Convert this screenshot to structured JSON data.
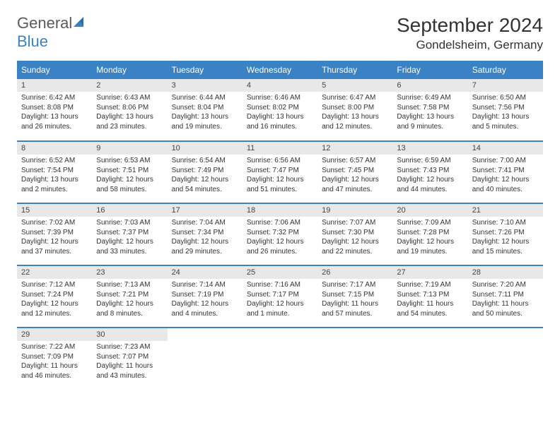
{
  "logo": {
    "text1": "General",
    "text2": "Blue"
  },
  "title": "September 2024",
  "location": "Gondelsheim, Germany",
  "colors": {
    "header_bg": "#3b82c4",
    "header_text": "#ffffff",
    "daynum_bg": "#e8e8e8",
    "daynum_text": "#444444",
    "body_text": "#333333",
    "row_border": "#3b82c4",
    "page_bg": "#ffffff",
    "logo_gray": "#5a5a5a",
    "logo_blue": "#3b82c4"
  },
  "typography": {
    "title_fontsize": 28,
    "location_fontsize": 17,
    "dayheader_fontsize": 12,
    "daynum_fontsize": 11,
    "body_fontsize": 10,
    "logo_fontsize": 22
  },
  "day_headers": [
    "Sunday",
    "Monday",
    "Tuesday",
    "Wednesday",
    "Thursday",
    "Friday",
    "Saturday"
  ],
  "weeks": [
    [
      {
        "num": "1",
        "sunrise": "Sunrise: 6:42 AM",
        "sunset": "Sunset: 8:08 PM",
        "daylight": "Daylight: 13 hours and 26 minutes."
      },
      {
        "num": "2",
        "sunrise": "Sunrise: 6:43 AM",
        "sunset": "Sunset: 8:06 PM",
        "daylight": "Daylight: 13 hours and 23 minutes."
      },
      {
        "num": "3",
        "sunrise": "Sunrise: 6:44 AM",
        "sunset": "Sunset: 8:04 PM",
        "daylight": "Daylight: 13 hours and 19 minutes."
      },
      {
        "num": "4",
        "sunrise": "Sunrise: 6:46 AM",
        "sunset": "Sunset: 8:02 PM",
        "daylight": "Daylight: 13 hours and 16 minutes."
      },
      {
        "num": "5",
        "sunrise": "Sunrise: 6:47 AM",
        "sunset": "Sunset: 8:00 PM",
        "daylight": "Daylight: 13 hours and 12 minutes."
      },
      {
        "num": "6",
        "sunrise": "Sunrise: 6:49 AM",
        "sunset": "Sunset: 7:58 PM",
        "daylight": "Daylight: 13 hours and 9 minutes."
      },
      {
        "num": "7",
        "sunrise": "Sunrise: 6:50 AM",
        "sunset": "Sunset: 7:56 PM",
        "daylight": "Daylight: 13 hours and 5 minutes."
      }
    ],
    [
      {
        "num": "8",
        "sunrise": "Sunrise: 6:52 AM",
        "sunset": "Sunset: 7:54 PM",
        "daylight": "Daylight: 13 hours and 2 minutes."
      },
      {
        "num": "9",
        "sunrise": "Sunrise: 6:53 AM",
        "sunset": "Sunset: 7:51 PM",
        "daylight": "Daylight: 12 hours and 58 minutes."
      },
      {
        "num": "10",
        "sunrise": "Sunrise: 6:54 AM",
        "sunset": "Sunset: 7:49 PM",
        "daylight": "Daylight: 12 hours and 54 minutes."
      },
      {
        "num": "11",
        "sunrise": "Sunrise: 6:56 AM",
        "sunset": "Sunset: 7:47 PM",
        "daylight": "Daylight: 12 hours and 51 minutes."
      },
      {
        "num": "12",
        "sunrise": "Sunrise: 6:57 AM",
        "sunset": "Sunset: 7:45 PM",
        "daylight": "Daylight: 12 hours and 47 minutes."
      },
      {
        "num": "13",
        "sunrise": "Sunrise: 6:59 AM",
        "sunset": "Sunset: 7:43 PM",
        "daylight": "Daylight: 12 hours and 44 minutes."
      },
      {
        "num": "14",
        "sunrise": "Sunrise: 7:00 AM",
        "sunset": "Sunset: 7:41 PM",
        "daylight": "Daylight: 12 hours and 40 minutes."
      }
    ],
    [
      {
        "num": "15",
        "sunrise": "Sunrise: 7:02 AM",
        "sunset": "Sunset: 7:39 PM",
        "daylight": "Daylight: 12 hours and 37 minutes."
      },
      {
        "num": "16",
        "sunrise": "Sunrise: 7:03 AM",
        "sunset": "Sunset: 7:37 PM",
        "daylight": "Daylight: 12 hours and 33 minutes."
      },
      {
        "num": "17",
        "sunrise": "Sunrise: 7:04 AM",
        "sunset": "Sunset: 7:34 PM",
        "daylight": "Daylight: 12 hours and 29 minutes."
      },
      {
        "num": "18",
        "sunrise": "Sunrise: 7:06 AM",
        "sunset": "Sunset: 7:32 PM",
        "daylight": "Daylight: 12 hours and 26 minutes."
      },
      {
        "num": "19",
        "sunrise": "Sunrise: 7:07 AM",
        "sunset": "Sunset: 7:30 PM",
        "daylight": "Daylight: 12 hours and 22 minutes."
      },
      {
        "num": "20",
        "sunrise": "Sunrise: 7:09 AM",
        "sunset": "Sunset: 7:28 PM",
        "daylight": "Daylight: 12 hours and 19 minutes."
      },
      {
        "num": "21",
        "sunrise": "Sunrise: 7:10 AM",
        "sunset": "Sunset: 7:26 PM",
        "daylight": "Daylight: 12 hours and 15 minutes."
      }
    ],
    [
      {
        "num": "22",
        "sunrise": "Sunrise: 7:12 AM",
        "sunset": "Sunset: 7:24 PM",
        "daylight": "Daylight: 12 hours and 12 minutes."
      },
      {
        "num": "23",
        "sunrise": "Sunrise: 7:13 AM",
        "sunset": "Sunset: 7:21 PM",
        "daylight": "Daylight: 12 hours and 8 minutes."
      },
      {
        "num": "24",
        "sunrise": "Sunrise: 7:14 AM",
        "sunset": "Sunset: 7:19 PM",
        "daylight": "Daylight: 12 hours and 4 minutes."
      },
      {
        "num": "25",
        "sunrise": "Sunrise: 7:16 AM",
        "sunset": "Sunset: 7:17 PM",
        "daylight": "Daylight: 12 hours and 1 minute."
      },
      {
        "num": "26",
        "sunrise": "Sunrise: 7:17 AM",
        "sunset": "Sunset: 7:15 PM",
        "daylight": "Daylight: 11 hours and 57 minutes."
      },
      {
        "num": "27",
        "sunrise": "Sunrise: 7:19 AM",
        "sunset": "Sunset: 7:13 PM",
        "daylight": "Daylight: 11 hours and 54 minutes."
      },
      {
        "num": "28",
        "sunrise": "Sunrise: 7:20 AM",
        "sunset": "Sunset: 7:11 PM",
        "daylight": "Daylight: 11 hours and 50 minutes."
      }
    ],
    [
      {
        "num": "29",
        "sunrise": "Sunrise: 7:22 AM",
        "sunset": "Sunset: 7:09 PM",
        "daylight": "Daylight: 11 hours and 46 minutes."
      },
      {
        "num": "30",
        "sunrise": "Sunrise: 7:23 AM",
        "sunset": "Sunset: 7:07 PM",
        "daylight": "Daylight: 11 hours and 43 minutes."
      },
      null,
      null,
      null,
      null,
      null
    ]
  ]
}
